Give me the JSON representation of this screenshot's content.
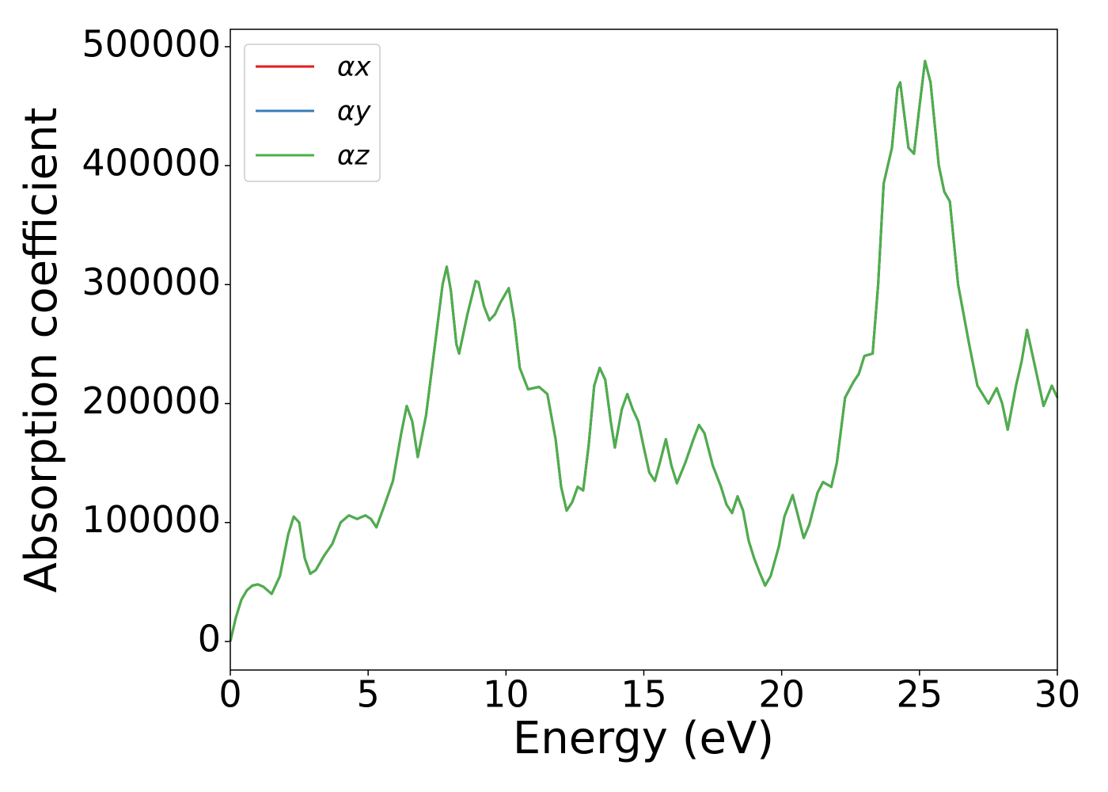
{
  "chart_data": {
    "type": "line",
    "xlabel": "Energy (eV)",
    "ylabel": "Absorption coefficient",
    "x": [
      0,
      0.2,
      0.4,
      0.6,
      0.8,
      1.0,
      1.2,
      1.5,
      1.8,
      2.1,
      2.3,
      2.5,
      2.7,
      2.9,
      3.1,
      3.4,
      3.7,
      4.0,
      4.3,
      4.6,
      4.9,
      5.1,
      5.3,
      5.6,
      5.9,
      6.2,
      6.4,
      6.6,
      6.8,
      7.1,
      7.4,
      7.7,
      7.85,
      8.0,
      8.2,
      8.3,
      8.6,
      8.9,
      9.0,
      9.2,
      9.4,
      9.6,
      9.8,
      10.1,
      10.3,
      10.5,
      10.8,
      11.2,
      11.5,
      11.8,
      12.0,
      12.2,
      12.4,
      12.6,
      12.8,
      13.0,
      13.2,
      13.4,
      13.6,
      13.8,
      13.95,
      14.2,
      14.4,
      14.6,
      14.8,
      15.0,
      15.2,
      15.4,
      15.6,
      15.8,
      16.0,
      16.2,
      16.5,
      16.8,
      17.0,
      17.2,
      17.5,
      17.8,
      18.0,
      18.2,
      18.4,
      18.6,
      18.8,
      19.0,
      19.2,
      19.4,
      19.6,
      19.9,
      20.1,
      20.4,
      20.6,
      20.8,
      21.0,
      21.3,
      21.5,
      21.8,
      22.0,
      22.3,
      22.6,
      22.8,
      23.0,
      23.3,
      23.5,
      23.7,
      24.0,
      24.2,
      24.3,
      24.6,
      24.8,
      25.0,
      25.2,
      25.4,
      25.7,
      25.9,
      26.1,
      26.4,
      26.8,
      27.1,
      27.5,
      27.8,
      28.0,
      28.2,
      28.5,
      28.7,
      28.9,
      29.2,
      29.5,
      29.8,
      30.0
    ],
    "series": [
      {
        "name": "αx",
        "color": "#e41a1c",
        "values": [
          0,
          20000,
          35000,
          43000,
          47000,
          48000,
          46000,
          40000,
          55000,
          90000,
          105000,
          100000,
          70000,
          57000,
          60000,
          72000,
          82000,
          100000,
          106000,
          103000,
          106000,
          103000,
          96000,
          115000,
          135000,
          175000,
          198000,
          185000,
          155000,
          190000,
          245000,
          300000,
          315000,
          295000,
          250000,
          242000,
          275000,
          303000,
          302000,
          282000,
          270000,
          275000,
          285000,
          297000,
          270000,
          230000,
          212000,
          214000,
          208000,
          170000,
          130000,
          110000,
          117000,
          130000,
          127000,
          165000,
          215000,
          230000,
          220000,
          185000,
          163000,
          195000,
          208000,
          195000,
          185000,
          163000,
          142000,
          135000,
          152000,
          170000,
          148000,
          133000,
          150000,
          170000,
          182000,
          175000,
          148000,
          130000,
          115000,
          108000,
          122000,
          110000,
          85000,
          70000,
          58000,
          47000,
          55000,
          80000,
          105000,
          123000,
          105000,
          87000,
          98000,
          125000,
          134000,
          130000,
          150000,
          205000,
          218000,
          225000,
          240000,
          242000,
          300000,
          385000,
          415000,
          465000,
          470000,
          415000,
          410000,
          450000,
          488000,
          470000,
          400000,
          378000,
          370000,
          300000,
          250000,
          215000,
          200000,
          213000,
          200000,
          178000,
          215000,
          235000,
          262000,
          230000,
          198000,
          215000,
          205000
        ]
      },
      {
        "name": "αy",
        "color": "#377eb8",
        "values": [
          0,
          20000,
          35000,
          43000,
          47000,
          48000,
          46000,
          40000,
          55000,
          90000,
          105000,
          100000,
          70000,
          57000,
          60000,
          72000,
          82000,
          100000,
          106000,
          103000,
          106000,
          103000,
          96000,
          115000,
          135000,
          175000,
          198000,
          185000,
          155000,
          190000,
          245000,
          300000,
          315000,
          295000,
          250000,
          242000,
          275000,
          303000,
          302000,
          282000,
          270000,
          275000,
          285000,
          297000,
          270000,
          230000,
          212000,
          214000,
          208000,
          170000,
          130000,
          110000,
          117000,
          130000,
          127000,
          165000,
          215000,
          230000,
          220000,
          185000,
          163000,
          195000,
          208000,
          195000,
          185000,
          163000,
          142000,
          135000,
          152000,
          170000,
          148000,
          133000,
          150000,
          170000,
          182000,
          175000,
          148000,
          130000,
          115000,
          108000,
          122000,
          110000,
          85000,
          70000,
          58000,
          47000,
          55000,
          80000,
          105000,
          123000,
          105000,
          87000,
          98000,
          125000,
          134000,
          130000,
          150000,
          205000,
          218000,
          225000,
          240000,
          242000,
          300000,
          385000,
          415000,
          465000,
          470000,
          415000,
          410000,
          450000,
          488000,
          470000,
          400000,
          378000,
          370000,
          300000,
          250000,
          215000,
          200000,
          213000,
          200000,
          178000,
          215000,
          235000,
          262000,
          230000,
          198000,
          215000,
          205000
        ]
      },
      {
        "name": "αz",
        "color": "#4daf4a",
        "values": [
          0,
          20000,
          35000,
          43000,
          47000,
          48000,
          46000,
          40000,
          55000,
          90000,
          105000,
          100000,
          70000,
          57000,
          60000,
          72000,
          82000,
          100000,
          106000,
          103000,
          106000,
          103000,
          96000,
          115000,
          135000,
          175000,
          198000,
          185000,
          155000,
          190000,
          245000,
          300000,
          315000,
          295000,
          250000,
          242000,
          275000,
          303000,
          302000,
          282000,
          270000,
          275000,
          285000,
          297000,
          270000,
          230000,
          212000,
          214000,
          208000,
          170000,
          130000,
          110000,
          117000,
          130000,
          127000,
          165000,
          215000,
          230000,
          220000,
          185000,
          163000,
          195000,
          208000,
          195000,
          185000,
          163000,
          142000,
          135000,
          152000,
          170000,
          148000,
          133000,
          150000,
          170000,
          182000,
          175000,
          148000,
          130000,
          115000,
          108000,
          122000,
          110000,
          85000,
          70000,
          58000,
          47000,
          55000,
          80000,
          105000,
          123000,
          105000,
          87000,
          98000,
          125000,
          134000,
          130000,
          150000,
          205000,
          218000,
          225000,
          240000,
          242000,
          300000,
          385000,
          415000,
          465000,
          470000,
          415000,
          410000,
          450000,
          488000,
          470000,
          400000,
          378000,
          370000,
          300000,
          250000,
          215000,
          200000,
          213000,
          200000,
          178000,
          215000,
          235000,
          262000,
          230000,
          198000,
          215000,
          205000
        ]
      }
    ],
    "xlim": [
      0,
      30
    ],
    "xticks": [
      0,
      5,
      10,
      15,
      20,
      25,
      30
    ],
    "ylim": [
      -24000,
      514600
    ],
    "yticks": [
      0,
      100000,
      200000,
      300000,
      400000,
      500000
    ],
    "grid": false,
    "legend": "upper left"
  }
}
